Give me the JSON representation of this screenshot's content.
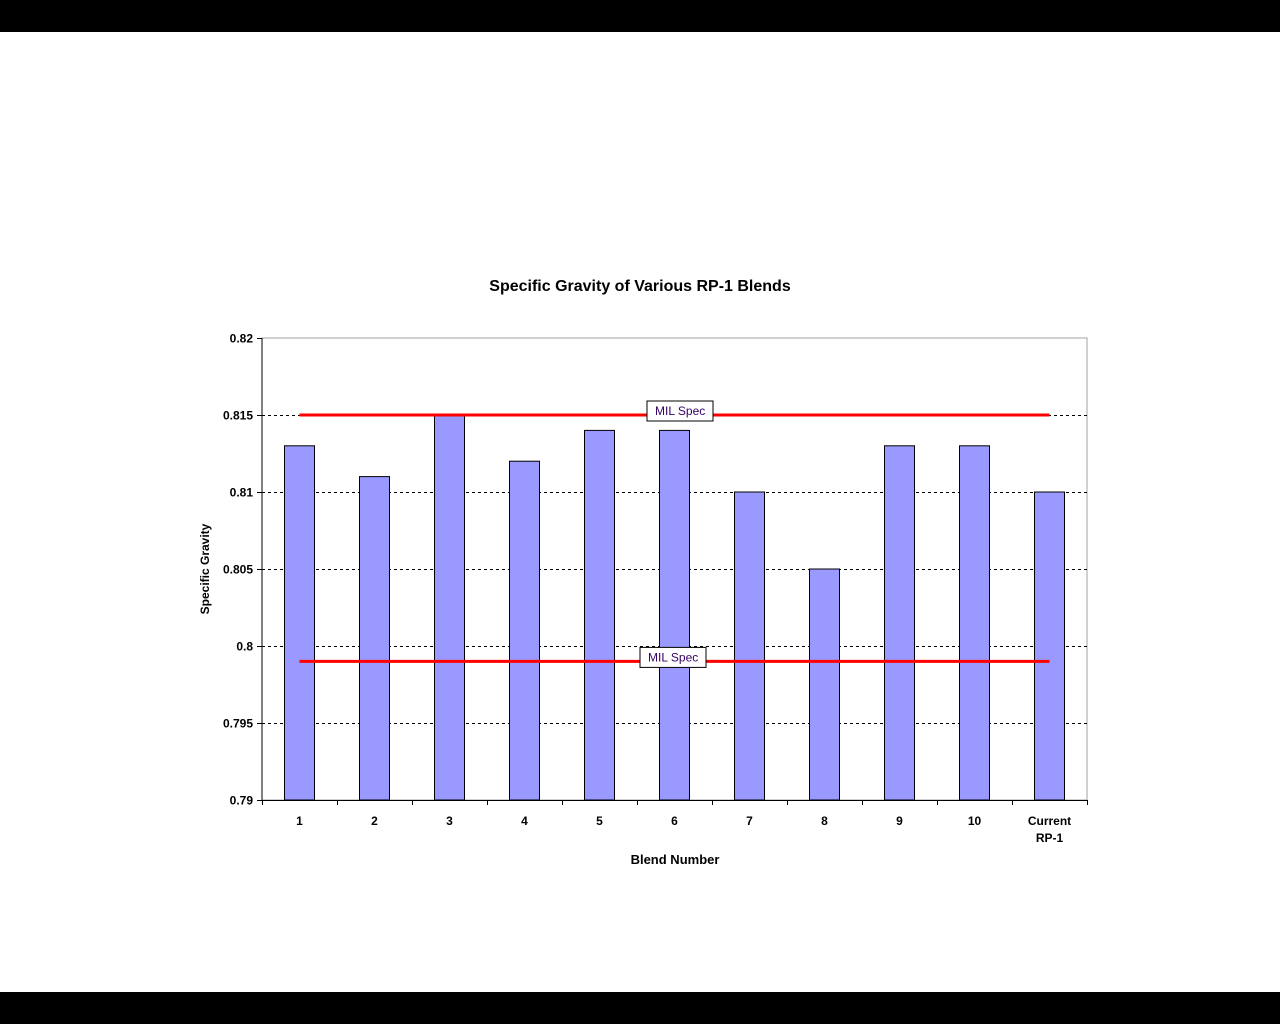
{
  "chart_data": {
    "type": "bar",
    "title": "Specific Gravity of Various RP-1 Blends",
    "xlabel": "Blend Number",
    "ylabel": "Specific Gravity",
    "categories": [
      "1",
      "2",
      "3",
      "4",
      "5",
      "6",
      "7",
      "8",
      "9",
      "10",
      "Current RP-1"
    ],
    "values": [
      0.813,
      0.811,
      0.815,
      0.812,
      0.814,
      0.814,
      0.81,
      0.805,
      0.813,
      0.813,
      0.81
    ],
    "ylim": [
      0.79,
      0.82
    ],
    "yticks": [
      "0.79",
      "0.795",
      "0.8",
      "0.805",
      "0.81",
      "0.815",
      "0.82"
    ],
    "grid": "horizontal dashed",
    "bar_color": "#9999ff",
    "reference_lines": [
      {
        "label": "MIL Spec",
        "value": 0.815,
        "color": "#ff0000"
      },
      {
        "label": "MIL Spec",
        "value": 0.799,
        "color": "#ff0000"
      }
    ],
    "legend": null
  }
}
